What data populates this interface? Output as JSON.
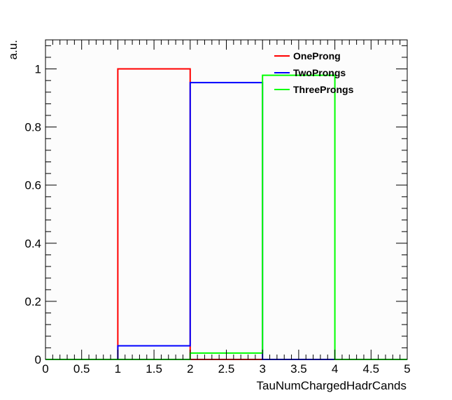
{
  "chart_data": {
    "type": "histogram",
    "title": "",
    "xlabel": "TauNumChargedHadrCands",
    "ylabel": "a.u.",
    "xlim": [
      0,
      5
    ],
    "ylim": [
      0,
      1.1
    ],
    "x_ticks": [
      0,
      0.5,
      1,
      1.5,
      2,
      2.5,
      3,
      3.5,
      4,
      4.5,
      5
    ],
    "x_tick_labels": [
      "0",
      "0.5",
      "1",
      "1.5",
      "2",
      "2.5",
      "3",
      "3.5",
      "4",
      "4.5",
      "5"
    ],
    "y_ticks": [
      0,
      0.2,
      0.4,
      0.6,
      0.8,
      1
    ],
    "y_tick_labels": [
      "0",
      "0.2",
      "0.4",
      "0.6",
      "0.8",
      "1"
    ],
    "bin_edges": [
      0,
      1,
      2,
      3,
      4,
      5
    ],
    "series": [
      {
        "name": "OneProng",
        "color": "#ff0000",
        "values": [
          0,
          1.0,
          0,
          0,
          0
        ]
      },
      {
        "name": "TwoProngs",
        "color": "#0000ff",
        "values": [
          0,
          0.047,
          0.953,
          0,
          0
        ]
      },
      {
        "name": "ThreeProngs",
        "color": "#00ff00",
        "values": [
          0,
          0,
          0.022,
          0.978,
          0
        ]
      }
    ],
    "legend_position": "top-right",
    "grid": false
  }
}
